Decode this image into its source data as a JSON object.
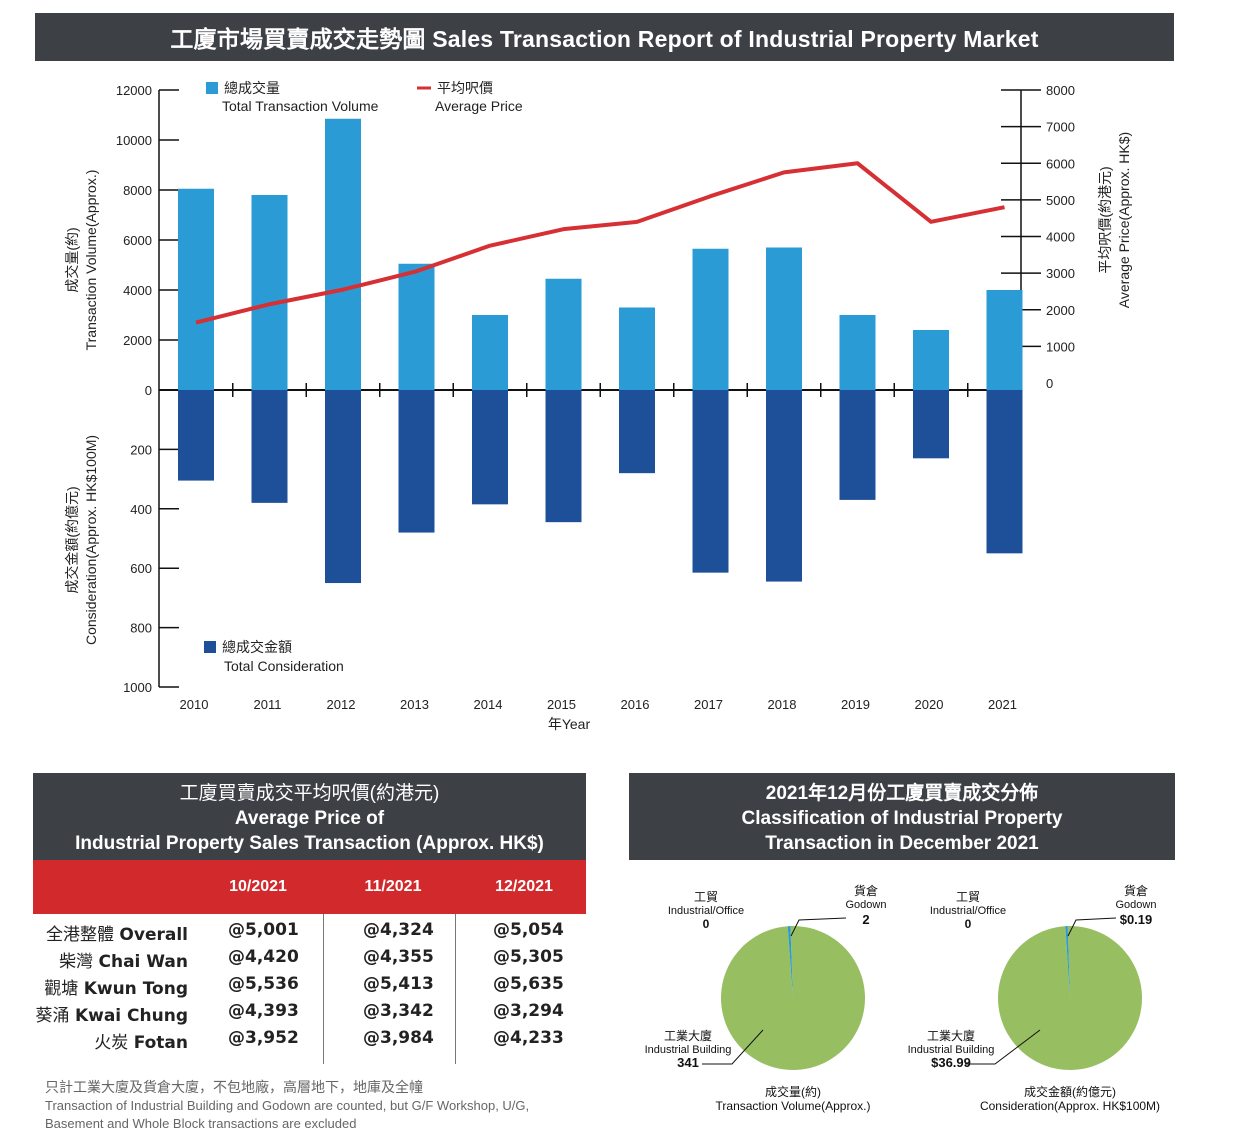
{
  "title": "工廈市場買賣成交走勢圖 Sales Transaction Report of Industrial Property Market",
  "chart_data": [
    {
      "type": "bar+line",
      "categories": [
        "2010",
        "2011",
        "2012",
        "2013",
        "2014",
        "2015",
        "2016",
        "2017",
        "2018",
        "2019",
        "2020",
        "2021"
      ],
      "series": [
        {
          "name": "總成交量 Total Transaction Volume",
          "axis": "left-top",
          "values": [
            8050,
            7800,
            10850,
            5050,
            3000,
            4450,
            3300,
            5650,
            5700,
            3000,
            2400,
            4000
          ],
          "color": "#2a9bd5"
        },
        {
          "name": "總成交金額 Total Consideration",
          "axis": "left-bottom",
          "values": [
            305,
            380,
            650,
            480,
            385,
            445,
            280,
            615,
            645,
            370,
            230,
            550
          ],
          "color": "#1e4f99"
        },
        {
          "name": "平均呎價 Average Price",
          "axis": "right",
          "type": "line",
          "values": [
            1650,
            2150,
            2550,
            3050,
            3750,
            4200,
            4400,
            5100,
            5750,
            6000,
            4400,
            4800
          ],
          "color": "#d62f34"
        }
      ],
      "xlabel": "年Year",
      "ylabel_top": [
        "成交量(約)",
        "Transaction Volume(Approx.)"
      ],
      "ylabel_bottom": [
        "成交金額(約億元)",
        "Consideration(Approx. HK$100M)"
      ],
      "ylabel_right": [
        "平均呎價(約港元)",
        "Average Price(Approx. HK$)"
      ],
      "ylim_top": [
        0,
        12000
      ],
      "yticks_top": [
        "12000",
        "10000",
        "8000",
        "6000",
        "4000",
        "2000",
        "0"
      ],
      "ylim_bottom": [
        0,
        1000
      ],
      "yticks_bottom": [
        "200",
        "400",
        "600",
        "800",
        "1000"
      ],
      "ylim_right": [
        0,
        8000
      ],
      "yticks_right": [
        "8000",
        "7000",
        "6000",
        "5000",
        "4000",
        "3000",
        "2000",
        "1000",
        "0"
      ],
      "legend": {
        "volume": [
          "總成交量",
          "Total Transaction Volume"
        ],
        "price": [
          "平均呎價",
          "Average Price"
        ],
        "consideration": [
          "總成交金額",
          "Total Consideration"
        ]
      }
    },
    {
      "type": "pie",
      "title": [
        "成交量(約)",
        "Transaction Volume(Approx.)"
      ],
      "slices": [
        {
          "name": [
            "工業大廈",
            "Industrial Building"
          ],
          "value": 341,
          "label": "341",
          "color": "#97bf62"
        },
        {
          "name": [
            "貨倉",
            "Godown"
          ],
          "value": 2,
          "label": "2",
          "color": "#2a9bd5"
        },
        {
          "name": [
            "工貿",
            "Industrial/Office"
          ],
          "value": 0,
          "label": "0",
          "color": "#1e4f99"
        }
      ]
    },
    {
      "type": "pie",
      "title": [
        "成交金額(約億元)",
        "Consideration(Approx. HK$100M)"
      ],
      "slices": [
        {
          "name": [
            "工業大廈",
            "Industrial Building"
          ],
          "value": 36.99,
          "label": "$36.99",
          "color": "#97bf62"
        },
        {
          "name": [
            "貨倉",
            "Godown"
          ],
          "value": 0.19,
          "label": "$0.19",
          "color": "#2a9bd5"
        },
        {
          "name": [
            "工貿",
            "Industrial/Office"
          ],
          "value": 0,
          "label": "0",
          "color": "#1e4f99"
        }
      ]
    }
  ],
  "price_table": {
    "heading": [
      "工廈買賣成交平均呎價(約港元)",
      "Average Price of",
      "Industrial Property Sales Transaction (Approx. HK$)"
    ],
    "columns": [
      "10/2021",
      "11/2021",
      "12/2021"
    ],
    "rows": [
      {
        "zh": "全港整體",
        "en": "Overall",
        "values": [
          "@5,001",
          "@4,324",
          "@5,054"
        ]
      },
      {
        "zh": "柴灣",
        "en": "Chai Wan",
        "values": [
          "@4,420",
          "@4,355",
          "@5,305"
        ]
      },
      {
        "zh": "觀塘",
        "en": "Kwun Tong",
        "values": [
          "@5,536",
          "@5,413",
          "@5,635"
        ]
      },
      {
        "zh": "葵涌",
        "en": "Kwai Chung",
        "values": [
          "@4,393",
          "@3,342",
          "@3,294"
        ]
      },
      {
        "zh": "火炭",
        "en": "Fotan",
        "values": [
          "@3,952",
          "@3,984",
          "@4,233"
        ]
      }
    ],
    "note_zh": "只計工業大廈及貨倉大廈，不包地廠，高層地下，地庫及全幢",
    "note_en": [
      "Transaction of Industrial Building and Godown are counted, but G/F Workshop, U/G,",
      "Basement and Whole Block transactions are excluded"
    ]
  },
  "classification": {
    "heading": [
      "2021年12月份工廈買賣成交分佈",
      "Classification of Industrial Property",
      "Transaction in December 2021"
    ]
  }
}
